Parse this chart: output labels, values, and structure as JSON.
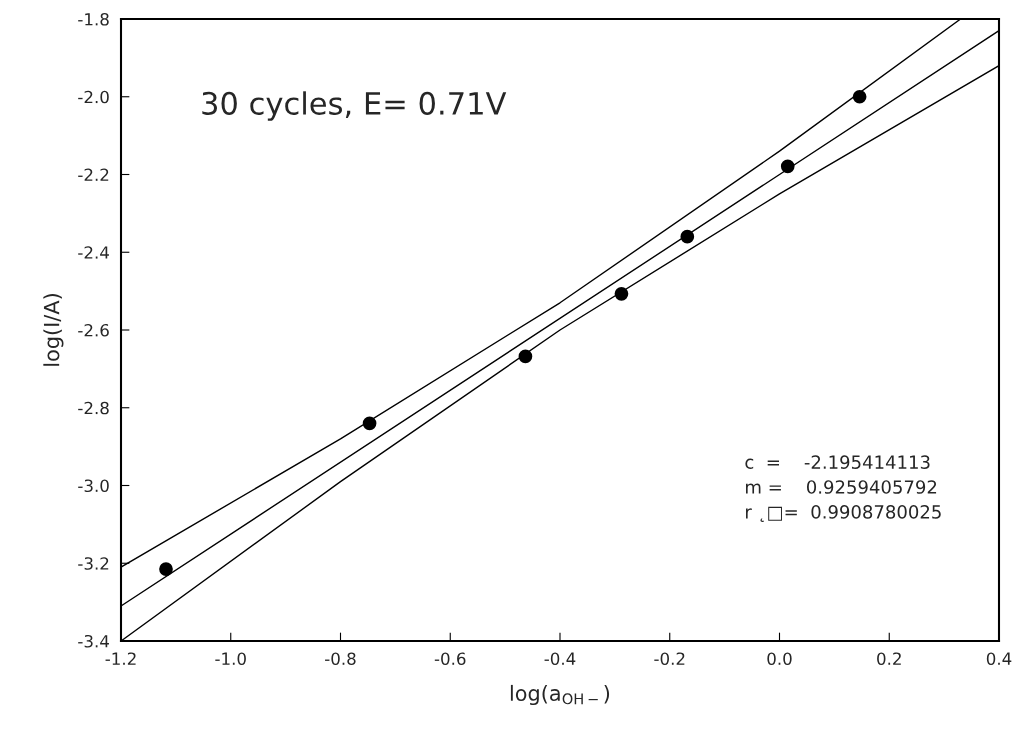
{
  "chart_data": {
    "type": "scatter",
    "xlabel": "log(a$_{OH−}$)",
    "ylabel": "log(I/A)",
    "xlim": [
      -1.2,
      0.4
    ],
    "ylim": [
      -3.4,
      -1.8
    ],
    "xticks": [
      {
        "value": -1.2,
        "label": "-1.2"
      },
      {
        "value": -1.0,
        "label": "-1.0"
      },
      {
        "value": -0.8,
        "label": "-0.8"
      },
      {
        "value": -0.6,
        "label": "-0.6"
      },
      {
        "value": -0.4,
        "label": "-0.4"
      },
      {
        "value": -0.2,
        "label": "-0.2"
      },
      {
        "value": 0.0,
        "label": "0.0"
      },
      {
        "value": 0.2,
        "label": "0.2"
      },
      {
        "value": 0.4,
        "label": "0.4"
      }
    ],
    "yticks": [
      {
        "value": -1.8,
        "label": "-1.8"
      },
      {
        "value": -2.0,
        "label": "-2.0"
      },
      {
        "value": -2.2,
        "label": "-2.2"
      },
      {
        "value": -2.4,
        "label": "-2.4"
      },
      {
        "value": -2.6,
        "label": "-2.6"
      },
      {
        "value": -2.8,
        "label": "-2.8"
      },
      {
        "value": -3.0,
        "label": "-3.0"
      },
      {
        "value": -3.2,
        "label": "-3.2"
      },
      {
        "value": -3.4,
        "label": "-3.4"
      }
    ],
    "grid": false,
    "legend": false,
    "series": [
      {
        "color": "#000000",
        "marker": "circle",
        "x": [
          -1.118,
          -0.747,
          -0.463,
          -0.288,
          -0.168,
          0.015,
          0.146
        ],
        "values": [
          -3.215,
          -2.84,
          -2.668,
          -2.507,
          -2.36,
          -2.179,
          -2.0
        ]
      },
      {
        "type": "line",
        "color": "#000000",
        "line_style": "solid",
        "x": [
          -1.2,
          0.4
        ],
        "values": [
          -3.31,
          -1.83
        ]
      },
      {
        "type": "line",
        "color": "#000000",
        "line_style": "solid",
        "x": [
          -1.2,
          -0.8,
          -0.4,
          0.0,
          0.33
        ],
        "values": [
          -3.21,
          -2.88,
          -2.53,
          -2.14,
          -1.8
        ]
      },
      {
        "type": "line",
        "color": "#000000",
        "line_style": "solid",
        "x": [
          -1.2,
          -0.8,
          -0.4,
          0.0,
          0.4
        ],
        "values": [
          -3.4,
          -2.99,
          -2.6,
          -2.25,
          -1.92
        ]
      }
    ],
    "annotations": [
      "30 cycles, E= 0.71V",
      "c  =    -2.195414113",
      "m =    0.9259405792",
      "r ˛□=  0.9908780025"
    ]
  }
}
